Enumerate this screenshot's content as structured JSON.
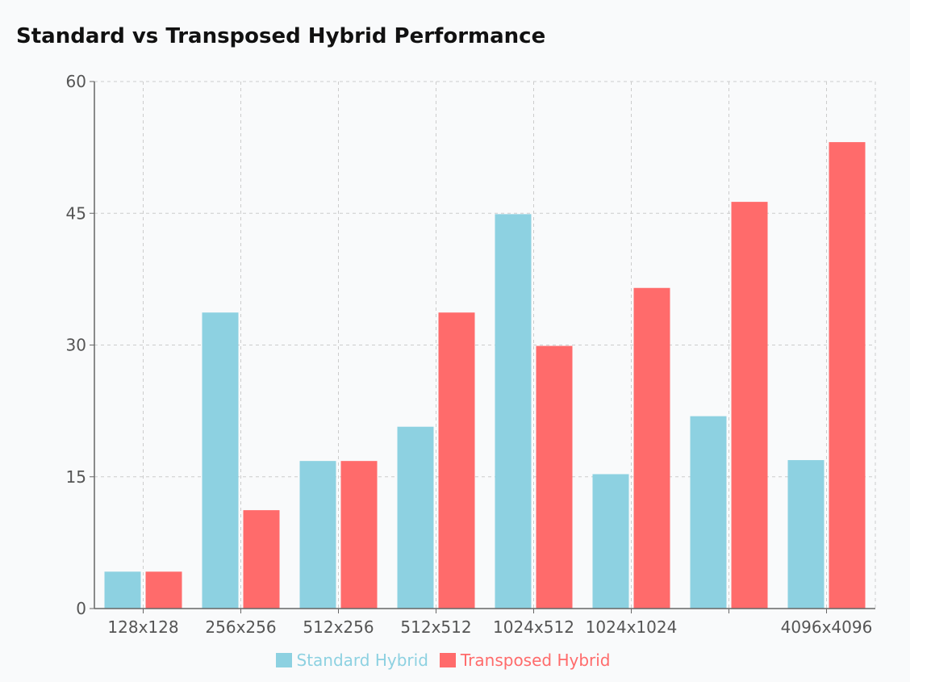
{
  "chart_data": {
    "type": "bar",
    "title": "Standard vs Transposed Hybrid Performance",
    "xlabel": "",
    "ylabel": "",
    "categories": [
      "128x128",
      "256x256",
      "512x256",
      "512x512",
      "1024x512",
      "1024x1024",
      "",
      "4096x4096"
    ],
    "series": [
      {
        "name": "Standard Hybrid",
        "color": "#8dd1e1",
        "values": [
          4.2,
          33.7,
          16.8,
          20.7,
          44.9,
          15.3,
          21.9,
          16.9
        ]
      },
      {
        "name": "Transposed Hybrid",
        "color": "#ff6b6b",
        "values": [
          4.2,
          11.2,
          16.8,
          33.7,
          29.9,
          36.5,
          46.3,
          53.1
        ]
      }
    ],
    "ylim": [
      0,
      60
    ],
    "yticks": [
      0,
      15,
      30,
      45,
      60
    ],
    "grid": true,
    "legend": "bottom-center"
  }
}
